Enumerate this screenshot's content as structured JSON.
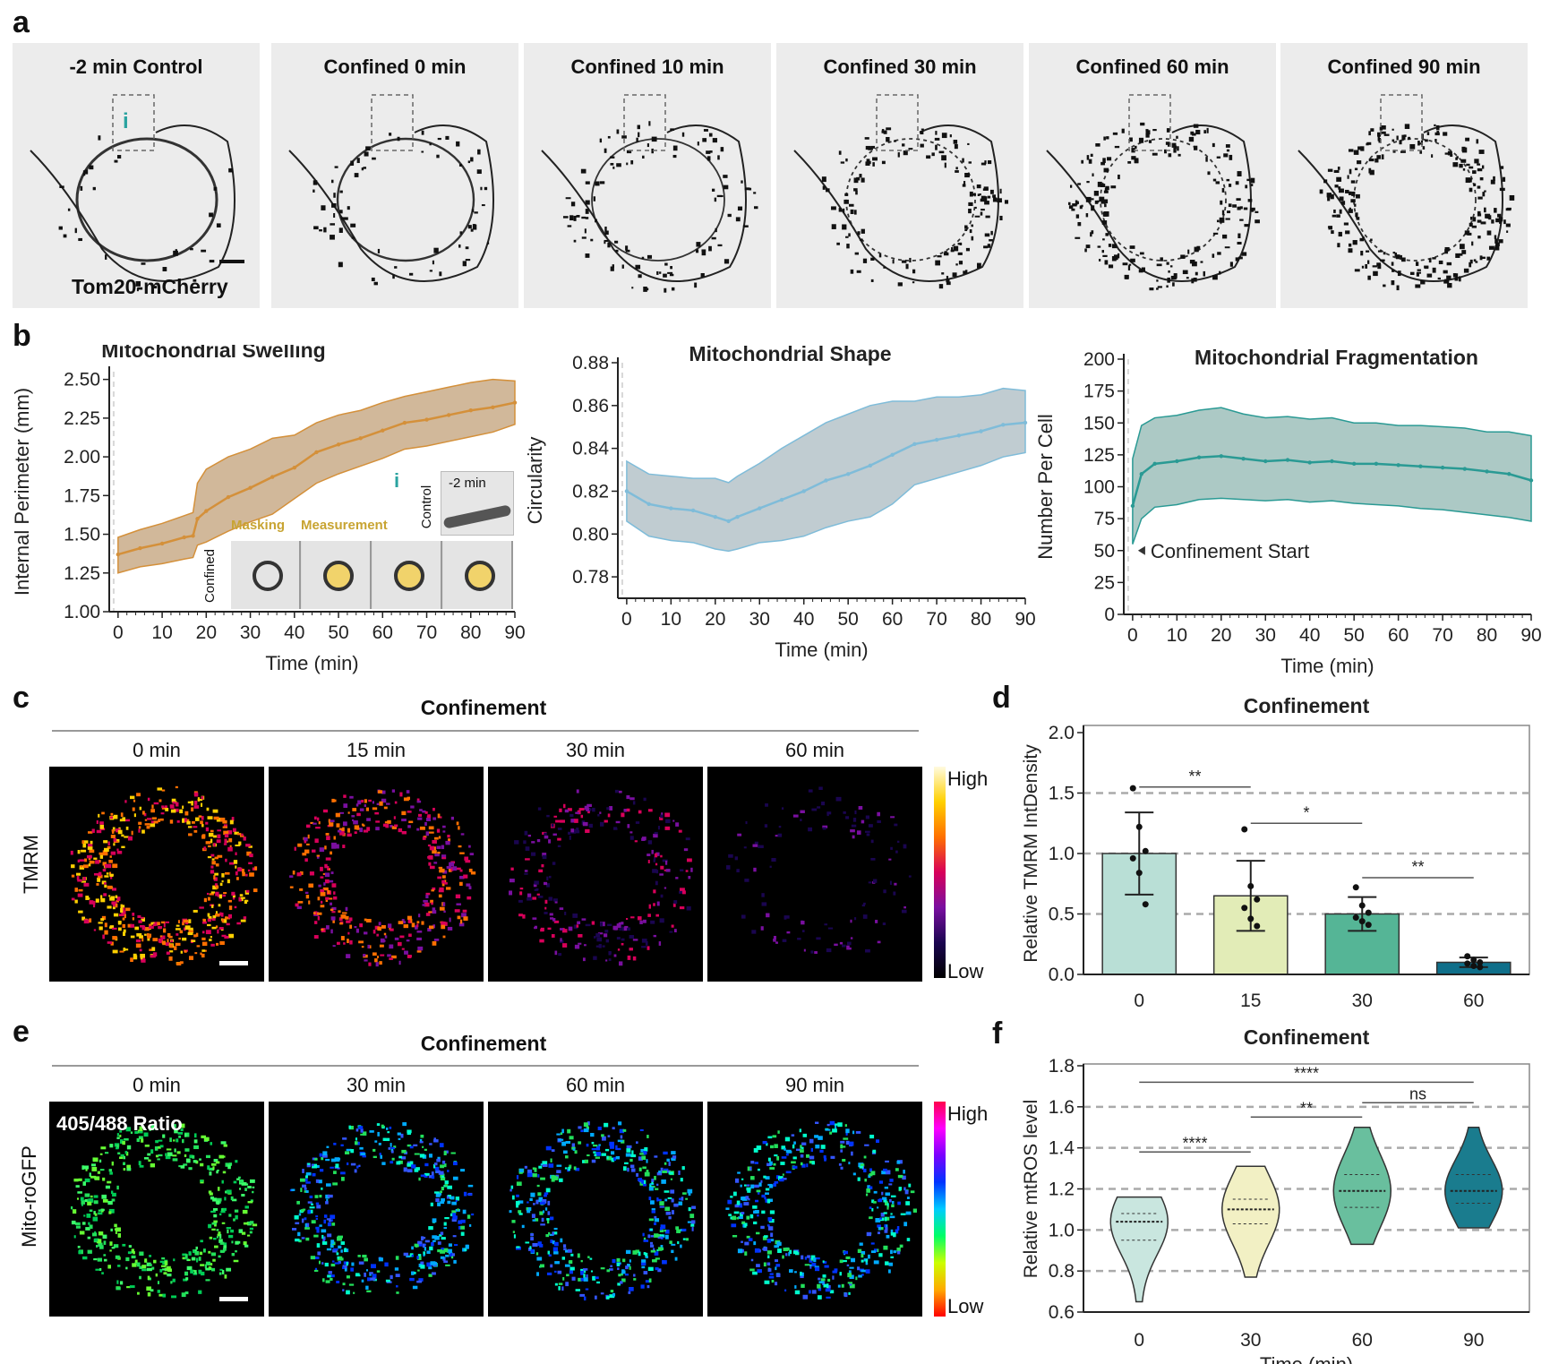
{
  "panels": {
    "a": "a",
    "b": "b",
    "c": "c",
    "d": "d",
    "e": "e",
    "f": "f"
  },
  "panel_a": {
    "frames": [
      "-2 min Control",
      "Confined 0 min",
      "Confined 10 min",
      "Confined 30 min",
      "Confined 60 min",
      "Confined 90 min"
    ],
    "stain_label": "Tom20-mCherry",
    "inset_marker": "i"
  },
  "panel_b_inset": {
    "marker": "i",
    "control_label": "Control",
    "confined_label": "Confined",
    "time_label": "-2 min",
    "masking_text": "Masking",
    "measurement_text": "Measurement"
  },
  "panel_c": {
    "header": "Confinement",
    "times": [
      "0 min",
      "15 min",
      "30 min",
      "60 min"
    ],
    "row_label": "TMRM",
    "scale_high": "High",
    "scale_low": "Low",
    "scale_colors": [
      "#fffbe0",
      "#ffd000",
      "#ff7000",
      "#d8005a",
      "#7a0fa0",
      "#1a0550",
      "#000000"
    ]
  },
  "panel_e": {
    "header": "Confinement",
    "times": [
      "0 min",
      "30 min",
      "60 min",
      "90 min"
    ],
    "row_label": "Mito-roGFP",
    "ratio_label": "405/488 Ratio",
    "scale_high": "High",
    "scale_low": "Low",
    "scale_colors": [
      "#ff004c",
      "#ff00ff",
      "#7a00ff",
      "#0033ff",
      "#00ccff",
      "#00ff66",
      "#ccff00",
      "#ffaa00",
      "#ff0000"
    ]
  },
  "chart_data": [
    {
      "type": "line",
      "title": "Mitochondrial Swelling",
      "xlabel": "Time (min)",
      "ylabel": "Internal Perimeter (mm)",
      "xlim": [
        -2,
        90
      ],
      "ylim": [
        1.0,
        2.55
      ],
      "xticks": [
        0,
        10,
        20,
        30,
        40,
        50,
        60,
        70,
        80,
        90
      ],
      "xtick_labels": [
        "0",
        "10",
        "20",
        "30",
        "40",
        "50",
        "60",
        "70",
        "80",
        "90"
      ],
      "yticks": [
        1.0,
        1.25,
        1.5,
        1.75,
        2.0,
        2.25,
        2.5
      ],
      "ytick_labels": [
        "1.00",
        "1.25",
        "1.50",
        "1.75",
        "2.00",
        "2.25",
        "2.50"
      ],
      "color": "#d4903a",
      "band_color": "#c9ab88",
      "x": [
        0,
        5,
        10,
        15,
        17,
        18,
        20,
        25,
        30,
        35,
        40,
        45,
        50,
        55,
        60,
        65,
        70,
        75,
        80,
        85,
        90
      ],
      "mean": [
        1.37,
        1.41,
        1.44,
        1.48,
        1.49,
        1.6,
        1.65,
        1.74,
        1.8,
        1.87,
        1.93,
        2.03,
        2.08,
        2.12,
        2.17,
        2.22,
        2.24,
        2.27,
        2.3,
        2.32,
        2.35
      ],
      "upper": [
        1.48,
        1.53,
        1.57,
        1.62,
        1.64,
        1.83,
        1.92,
        2.0,
        2.05,
        2.12,
        2.14,
        2.22,
        2.27,
        2.3,
        2.35,
        2.39,
        2.42,
        2.45,
        2.48,
        2.5,
        2.49
      ],
      "lower": [
        1.25,
        1.29,
        1.31,
        1.34,
        1.35,
        1.43,
        1.45,
        1.52,
        1.58,
        1.63,
        1.73,
        1.83,
        1.89,
        1.94,
        1.99,
        2.05,
        2.07,
        2.1,
        2.13,
        2.16,
        2.21
      ]
    },
    {
      "type": "line",
      "title": "Mitochondrial Shape",
      "xlabel": "Time (min)",
      "ylabel": "Circularity",
      "xlim": [
        -2,
        90
      ],
      "ylim": [
        0.77,
        0.88
      ],
      "xticks": [
        0,
        10,
        20,
        30,
        40,
        50,
        60,
        70,
        80,
        90
      ],
      "xtick_labels": [
        "0",
        "10",
        "20",
        "30",
        "40",
        "50",
        "60",
        "70",
        "80",
        "90"
      ],
      "yticks": [
        0.78,
        0.8,
        0.82,
        0.84,
        0.86,
        0.88
      ],
      "ytick_labels": [
        "0.78",
        "0.80",
        "0.82",
        "0.84",
        "0.86",
        "0.88"
      ],
      "color": "#7fbcd9",
      "band_color": "#b5c3c9",
      "x": [
        0,
        5,
        10,
        15,
        20,
        23,
        25,
        30,
        35,
        40,
        45,
        50,
        55,
        60,
        65,
        70,
        75,
        80,
        85,
        90
      ],
      "mean": [
        0.82,
        0.814,
        0.812,
        0.811,
        0.808,
        0.806,
        0.808,
        0.812,
        0.816,
        0.82,
        0.825,
        0.828,
        0.832,
        0.837,
        0.842,
        0.844,
        0.846,
        0.848,
        0.851,
        0.852
      ],
      "upper": [
        0.834,
        0.828,
        0.827,
        0.826,
        0.826,
        0.824,
        0.827,
        0.833,
        0.84,
        0.846,
        0.852,
        0.856,
        0.86,
        0.862,
        0.862,
        0.864,
        0.864,
        0.865,
        0.868,
        0.867
      ],
      "lower": [
        0.806,
        0.799,
        0.797,
        0.796,
        0.793,
        0.792,
        0.793,
        0.796,
        0.797,
        0.799,
        0.803,
        0.806,
        0.808,
        0.814,
        0.823,
        0.826,
        0.829,
        0.832,
        0.836,
        0.838
      ]
    },
    {
      "type": "line",
      "title": "Mitochondrial Fragmentation",
      "xlabel": "Time (min)",
      "ylabel": "Number Per Cell",
      "xlim": [
        -2,
        90
      ],
      "ylim": [
        0,
        200
      ],
      "xticks": [
        0,
        10,
        20,
        30,
        40,
        50,
        60,
        70,
        80,
        90
      ],
      "xtick_labels": [
        "0",
        "10",
        "20",
        "30",
        "40",
        "50",
        "60",
        "70",
        "80",
        "90"
      ],
      "yticks": [
        0,
        25,
        50,
        75,
        100,
        125,
        150,
        175,
        200
      ],
      "ytick_labels": [
        "0",
        "25",
        "50",
        "75",
        "100",
        "125",
        "150",
        "175",
        "200"
      ],
      "color": "#2a9a94",
      "band_color": "#9dbfbb",
      "annotation": "Confinement Start",
      "x": [
        0,
        2,
        5,
        10,
        15,
        20,
        25,
        30,
        35,
        40,
        45,
        50,
        55,
        60,
        65,
        70,
        75,
        80,
        85,
        90
      ],
      "mean": [
        85,
        110,
        118,
        120,
        123,
        124,
        122,
        120,
        121,
        119,
        120,
        118,
        118,
        117,
        116,
        115,
        114,
        112,
        110,
        105
      ],
      "upper": [
        122,
        148,
        154,
        156,
        160,
        162,
        157,
        154,
        155,
        153,
        154,
        150,
        150,
        148,
        148,
        147,
        146,
        143,
        143,
        140
      ],
      "lower": [
        55,
        75,
        84,
        86,
        90,
        91,
        90,
        89,
        90,
        88,
        89,
        87,
        86,
        85,
        83,
        82,
        80,
        78,
        76,
        73
      ]
    },
    {
      "type": "bar",
      "title": "Confinement",
      "ylabel": "Relative TMRM IntDensity",
      "categories": [
        "0",
        "15",
        "30",
        "60"
      ],
      "values": [
        1.0,
        0.65,
        0.5,
        0.1
      ],
      "errors": [
        0.34,
        0.29,
        0.14,
        0.04
      ],
      "points": [
        [
          1.54,
          1.22,
          1.02,
          0.96,
          0.84,
          0.58
        ],
        [
          1.2,
          0.73,
          0.62,
          0.55,
          0.46,
          0.4
        ],
        [
          0.72,
          0.57,
          0.51,
          0.47,
          0.44,
          0.41
        ],
        [
          0.15,
          0.12,
          0.1,
          0.09,
          0.07,
          0.06
        ]
      ],
      "ylim": [
        0,
        2.0
      ],
      "yticks": [
        0.0,
        0.5,
        1.0,
        1.5,
        2.0
      ],
      "ytick_labels": [
        "0.0",
        "0.5",
        "1.0",
        "1.5",
        "2.0"
      ],
      "colors": [
        "#b9dfd6",
        "#e2ecb7",
        "#55b596",
        "#0f6f8a"
      ],
      "significance": [
        {
          "from": 0,
          "to": 1,
          "y": 1.55,
          "label": "**"
        },
        {
          "from": 1,
          "to": 2,
          "y": 1.25,
          "label": "*"
        },
        {
          "from": 2,
          "to": 3,
          "y": 0.8,
          "label": "**"
        }
      ]
    },
    {
      "type": "violin",
      "title": "Confinement",
      "ylabel": "Relative mtROS level",
      "xlabel": "Time (min)",
      "categories": [
        "0",
        "30",
        "60",
        "90"
      ],
      "ylim": [
        0.6,
        1.8
      ],
      "yticks": [
        0.6,
        0.8,
        1.0,
        1.2,
        1.4,
        1.6,
        1.8
      ],
      "ytick_labels": [
        "0.6",
        "0.8",
        "1.0",
        "1.2",
        "1.4",
        "1.6",
        "1.8"
      ],
      "colors": [
        "#c9e6df",
        "#f2f0c4",
        "#69bf9e",
        "#1a7c8e"
      ],
      "medians": [
        1.04,
        1.1,
        1.19,
        1.19
      ],
      "q1": [
        0.95,
        1.03,
        1.11,
        1.13
      ],
      "q3": [
        1.08,
        1.15,
        1.27,
        1.27
      ],
      "min": [
        0.65,
        0.77,
        0.93,
        1.01
      ],
      "max": [
        1.16,
        1.31,
        1.5,
        1.5
      ],
      "significance": [
        {
          "from": 0,
          "to": 3,
          "y": 1.72,
          "label": "****"
        },
        {
          "from": 2,
          "to": 3,
          "y": 1.62,
          "label": "ns"
        },
        {
          "from": 1,
          "to": 2,
          "y": 1.55,
          "label": "**"
        },
        {
          "from": 0,
          "to": 1,
          "y": 1.38,
          "label": "****"
        }
      ]
    }
  ]
}
